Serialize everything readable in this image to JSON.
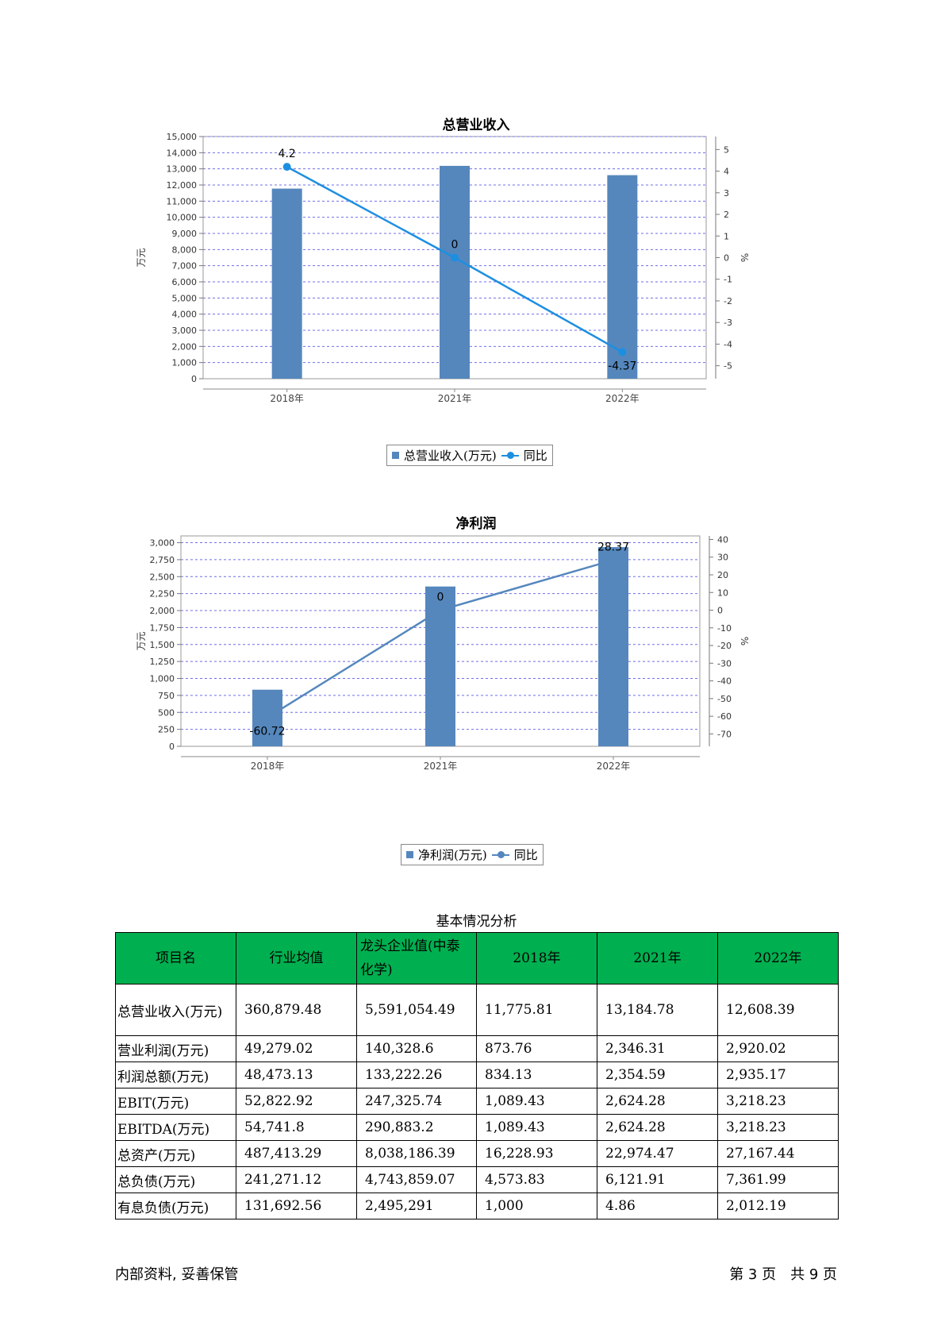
{
  "charts": [
    {
      "title": "总营业收入",
      "ylabel_left": "万元",
      "ylabel_right": "%",
      "legend": {
        "bar": "总营业收入(万元)",
        "line": "同比"
      },
      "point_labels": [
        "4.2",
        "0",
        "-4.37"
      ],
      "line_color": "#1d8fe1"
    },
    {
      "title": "净利润",
      "ylabel_left": "万元",
      "ylabel_right": "%",
      "legend": {
        "bar": "净利润(万元)",
        "line": "同比"
      },
      "point_labels": [
        "-60.72",
        "0",
        "28.37"
      ],
      "line_color": "#5587bd"
    }
  ],
  "chart_data": [
    {
      "type": "bar",
      "title": "总营业收入",
      "categories": [
        "2018年",
        "2021年",
        "2022年"
      ],
      "series": [
        {
          "name": "总营业收入(万元)",
          "type": "bar",
          "axis": "left",
          "values": [
            11775.81,
            13184.78,
            12608.39
          ]
        },
        {
          "name": "同比",
          "type": "line",
          "axis": "right",
          "values": [
            4.2,
            0,
            -4.37
          ]
        }
      ],
      "ylabel": "万元",
      "y2label": "%",
      "ylim": [
        0,
        15000
      ],
      "yticks": [
        0,
        1000,
        2000,
        3000,
        4000,
        5000,
        6000,
        7000,
        8000,
        9000,
        10000,
        11000,
        12000,
        13000,
        14000,
        15000
      ],
      "y2lim": [
        -5.6,
        5.6
      ],
      "y2ticks": [
        -5,
        -4,
        -3,
        -2,
        -1,
        0,
        1,
        2,
        3,
        4,
        5
      ],
      "grid": true,
      "bar_color": "#5587bd",
      "line_color": "#1d8fe1",
      "legend": "bottom-center"
    },
    {
      "type": "bar",
      "title": "净利润",
      "categories": [
        "2018年",
        "2021年",
        "2022年"
      ],
      "series": [
        {
          "name": "净利润(万元)",
          "type": "bar",
          "axis": "left",
          "values": [
            834.13,
            2354.59,
            2935.17
          ]
        },
        {
          "name": "同比",
          "type": "line",
          "axis": "right",
          "values": [
            -60.72,
            0,
            28.37
          ]
        }
      ],
      "ylabel": "万元",
      "y2label": "%",
      "ylim": [
        0,
        3100
      ],
      "yticks": [
        0,
        250,
        500,
        750,
        1000,
        1250,
        1500,
        1750,
        2000,
        2250,
        2500,
        2750,
        3000
      ],
      "y2lim": [
        -77,
        42
      ],
      "y2ticks": [
        -70,
        -60,
        -50,
        -40,
        -30,
        -20,
        -10,
        0,
        10,
        20,
        30,
        40
      ],
      "grid": true,
      "bar_color": "#5587bd",
      "line_color": "#5587bd",
      "legend": "bottom-center"
    }
  ],
  "table": {
    "caption": "基本情况分析",
    "headers": [
      "项目名",
      "行业均值",
      "龙头企业值(中泰化学)",
      "2018年",
      "2021年",
      "2022年"
    ],
    "rows": [
      [
        "总营业收入(万元)",
        "360,879.48",
        "5,591,054.49",
        "11,775.81",
        "13,184.78",
        "12,608.39"
      ],
      [
        "营业利润(万元)",
        "49,279.02",
        "140,328.6",
        "873.76",
        "2,346.31",
        "2,920.02"
      ],
      [
        "利润总额(万元)",
        "48,473.13",
        "133,222.26",
        "834.13",
        "2,354.59",
        "2,935.17"
      ],
      [
        "EBIT(万元)",
        "52,822.92",
        "247,325.74",
        "1,089.43",
        "2,624.28",
        "3,218.23"
      ],
      [
        "EBITDA(万元)",
        "54,741.8",
        "290,883.2",
        "1,089.43",
        "2,624.28",
        "3,218.23"
      ],
      [
        "总资产(万元)",
        "487,413.29",
        "8,038,186.39",
        "16,228.93",
        "22,974.47",
        "27,167.44"
      ],
      [
        "总负债(万元)",
        "241,271.12",
        "4,743,859.07",
        "4,573.83",
        "6,121.91",
        "7,361.99"
      ],
      [
        "有息负债(万元)",
        "131,692.56",
        "2,495,291",
        "1,000",
        "4.86",
        "2,012.19"
      ]
    ],
    "header_color": "#00b050"
  },
  "footer": {
    "left": "内部资料, 妥善保管",
    "right": "第 3 页　共 9 页"
  }
}
